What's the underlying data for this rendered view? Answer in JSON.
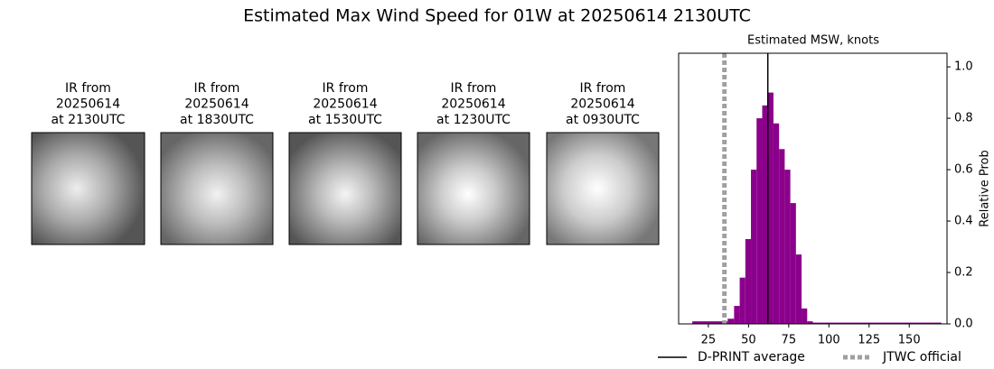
{
  "title": "Estimated Max Wind Speed for 01W at 20250614 2130UTC",
  "panels": [
    {
      "lines": [
        "IR from",
        "20250614",
        "at 2130UTC"
      ]
    },
    {
      "lines": [
        "IR from",
        "20250614",
        "at 1830UTC"
      ]
    },
    {
      "lines": [
        "IR from",
        "20250614",
        "at 1530UTC"
      ]
    },
    {
      "lines": [
        "IR from",
        "20250614",
        "at 1230UTC"
      ]
    },
    {
      "lines": [
        "IR from",
        "20250614",
        "at 0930UTC"
      ]
    }
  ],
  "chart_data": {
    "type": "histogram",
    "title": "Estimated MSW, knots",
    "y_label": "Relative Prob",
    "color": "#8b008b",
    "bins": [
      15,
      37,
      41,
      44.5,
      48,
      51.5,
      55,
      58.5,
      62,
      65.5,
      69,
      72.5,
      76,
      79.5,
      83,
      86.5,
      90,
      170
    ],
    "values": [
      0.01,
      0.02,
      0.07,
      0.18,
      0.33,
      0.6,
      0.8,
      0.85,
      0.9,
      0.78,
      0.68,
      0.6,
      0.47,
      0.27,
      0.06,
      0.01,
      0.005
    ],
    "xlim": [
      6.5,
      173.5
    ],
    "xticks": [
      25,
      50,
      75,
      100,
      125,
      150
    ],
    "ylim": [
      0,
      1.053
    ],
    "yticks": [
      {
        "value": 0,
        "label": "0.0"
      },
      {
        "value": 0.2,
        "label": "0.2"
      },
      {
        "value": 0.4,
        "label": "0.4"
      },
      {
        "value": 0.6,
        "label": "0.6"
      },
      {
        "value": 0.8,
        "label": "0.8"
      },
      {
        "value": 1,
        "label": "1.0"
      }
    ],
    "reference_lines": [
      {
        "name": "D-PRINT average",
        "x": 62,
        "color": "#000000",
        "style": "solid"
      },
      {
        "name": "JTWC official",
        "x": 35,
        "color": "#a0a0a0",
        "style": "dotted"
      }
    ]
  }
}
